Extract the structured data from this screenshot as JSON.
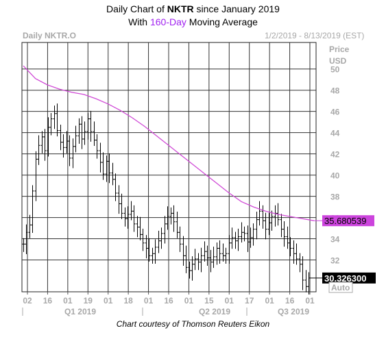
{
  "title": {
    "line1_prefix": "Daily Chart of ",
    "line1_symbol": "NKTR",
    "line1_suffix": " since January 2019",
    "line2_prefix": "With ",
    "line2_highlight": "160-Day",
    "line2_suffix": " Moving Average"
  },
  "header": {
    "instrument": "Daily NKTR.O",
    "date_range": "1/2/2019 - 8/13/2019 (EST)",
    "price_label": "Price",
    "currency_label": "USD"
  },
  "auto_button": "Auto",
  "credit": "Chart courtesy of Thomson Reuters Eikon",
  "colors": {
    "moving_average": "#d04ad6",
    "price_bars": "#000000",
    "grid": "#333333",
    "ma_label_bg": "#cc44dd",
    "title_highlight": "#a020f0"
  },
  "chart_data": {
    "type": "ohlc",
    "ylim": [
      29,
      52.5
    ],
    "y_ticks": [
      "32",
      "34",
      "36",
      "38",
      "40",
      "42",
      "44",
      "46",
      "48",
      "50"
    ],
    "x_ticks": [
      "02",
      "16",
      "01",
      "19",
      "01",
      "18",
      "01",
      "16",
      "01",
      "15",
      "01",
      "17",
      "01",
      "16",
      "01"
    ],
    "quarters": [
      "Q1 2019",
      "Q2 2019",
      "Q3 2019"
    ],
    "last_price_label": "30.326300",
    "ma_label": "35.680539",
    "series": [
      {
        "name": "NKTR.O",
        "kind": "price",
        "values": [
          33.5,
          34.6,
          35.3,
          38.5,
          41.5,
          42.8,
          43.6,
          42.3,
          44.5,
          45.3,
          45.8,
          44.2,
          43.1,
          42.6,
          43.2,
          41.6,
          42.7,
          43.7,
          44.8,
          43.4,
          44.1,
          45.3,
          44.1,
          43.3,
          42.3,
          41.2,
          40.1,
          41.3,
          40.2,
          39.6,
          38.3,
          37.3,
          36.4,
          35.9,
          36.3,
          36.6,
          35.4,
          35.1,
          34.4,
          33.6,
          33.1,
          32.4,
          32.6,
          33.2,
          33.8,
          34.5,
          35.4,
          36.1,
          36.4,
          35.6,
          34.6,
          33.5,
          32.4,
          31.3,
          31.0,
          31.6,
          32.1,
          31.8,
          32.4,
          32.8,
          32.2,
          31.8,
          32.3,
          33.1,
          32.6,
          32.4,
          32.6,
          33.6,
          34.1,
          33.8,
          34.2,
          34.6,
          34.5,
          33.7,
          34.1,
          34.9,
          35.8,
          36.6,
          35.7,
          34.9,
          35.5,
          36.1,
          36.4,
          35.8,
          34.9,
          34.2,
          33.6,
          33.1,
          32.6,
          32.1,
          31.6,
          30.1,
          29.5,
          30.3
        ]
      },
      {
        "name": "160-Day",
        "kind": "moving_average",
        "values": [
          50.3,
          49.1,
          48.5,
          48.1,
          47.8,
          47.6,
          47.2,
          46.7,
          46.1,
          45.4,
          44.6,
          43.7,
          42.8,
          41.9,
          41.0,
          40.1,
          39.2,
          38.3,
          37.5,
          37.0,
          36.6,
          36.3,
          36.1,
          35.9,
          35.7
        ]
      }
    ]
  }
}
